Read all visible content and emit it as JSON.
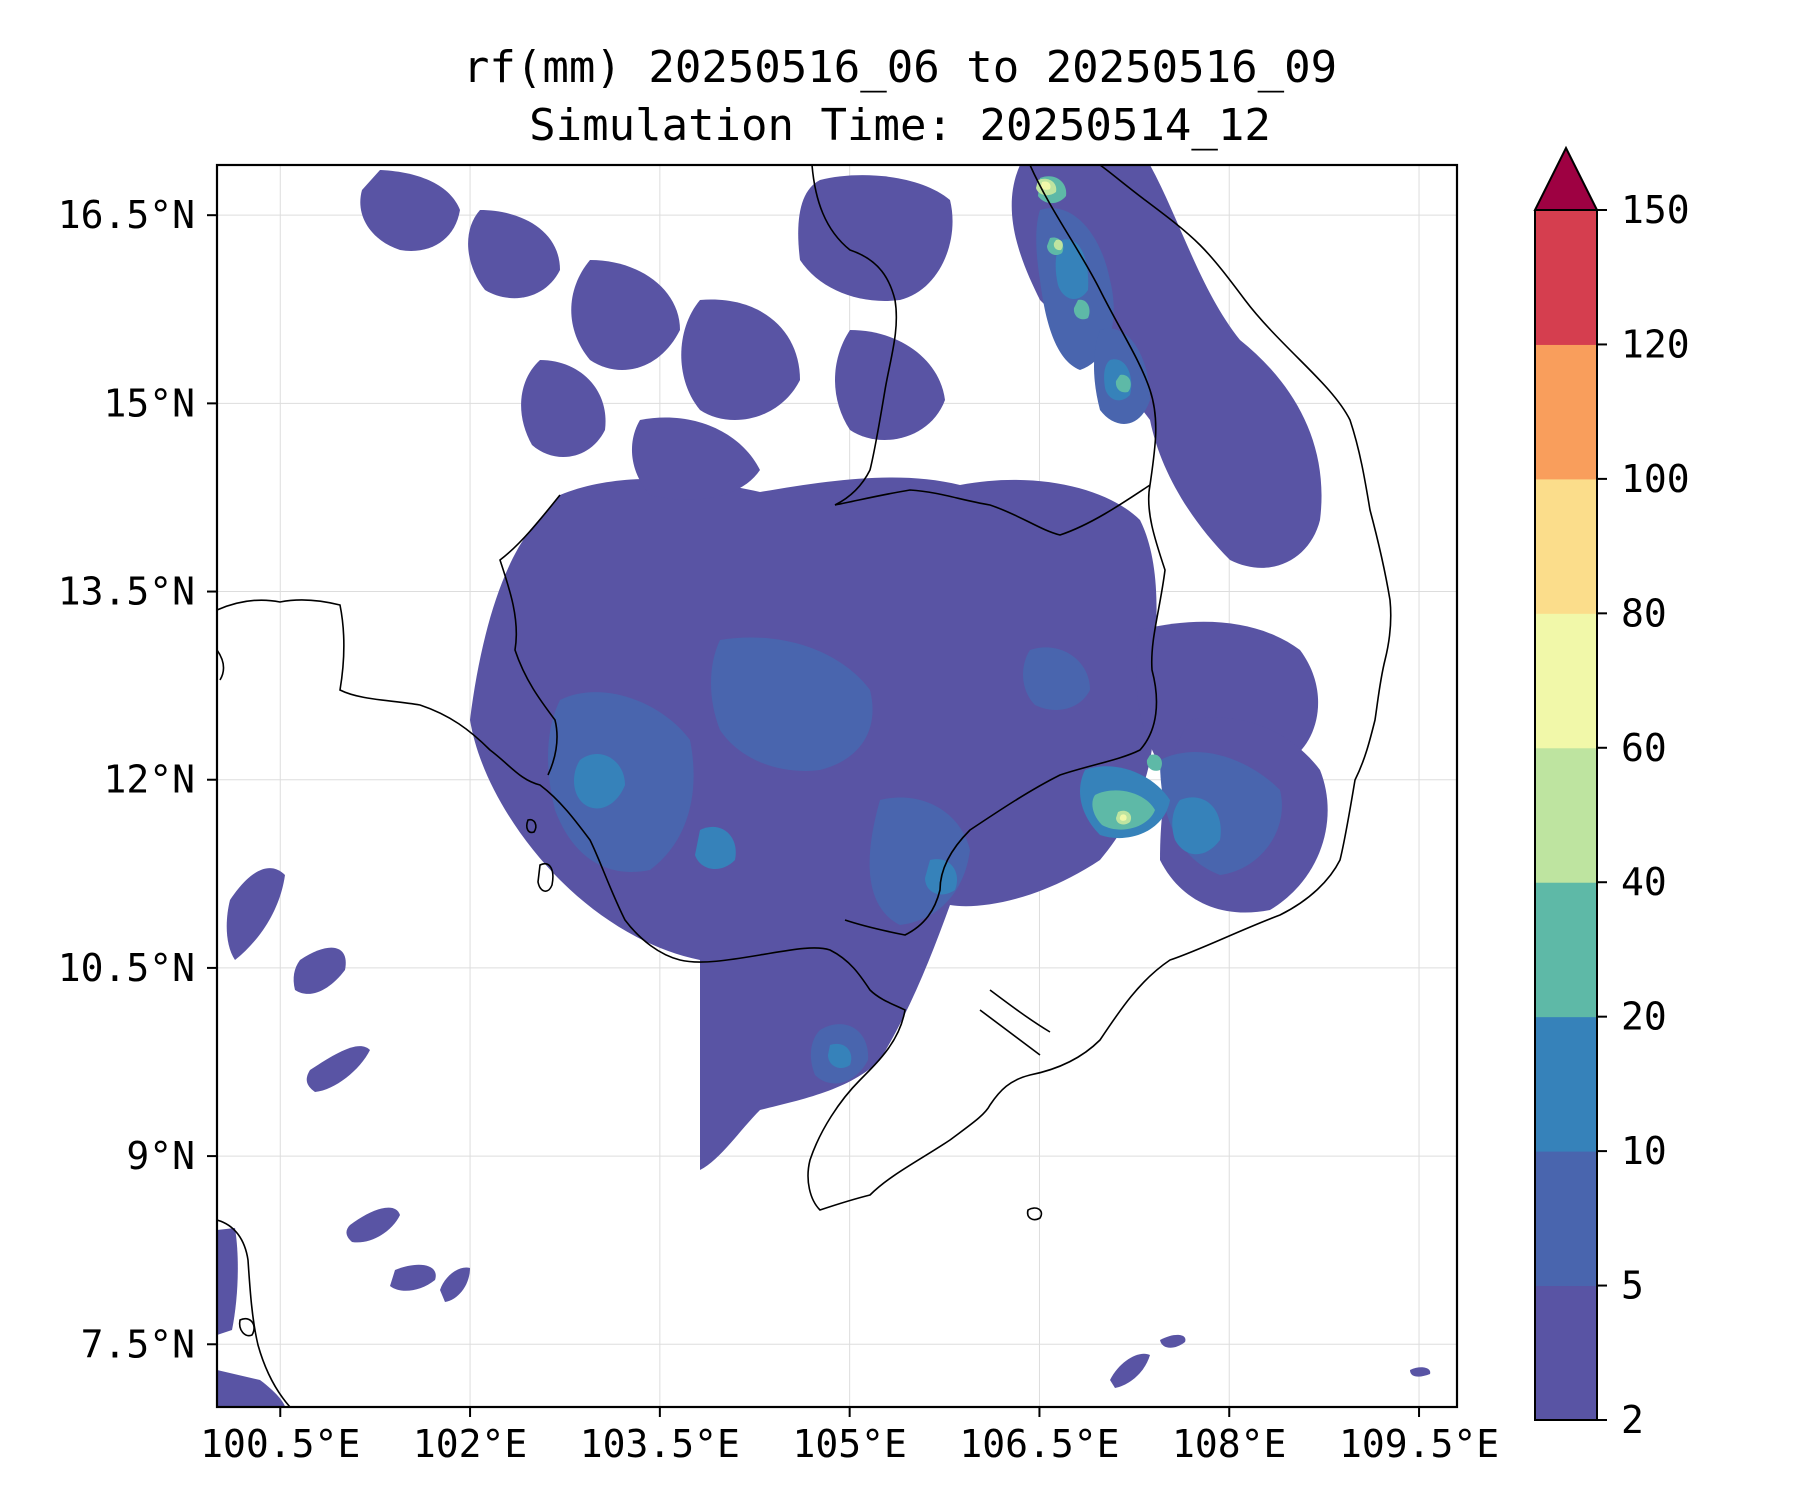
{
  "title": "rf(mm) 20250516_06 to 20250516_09",
  "subtitle": "Simulation Time: 20250514_12",
  "map": {
    "lon_range": [
      100.0,
      109.8
    ],
    "lat_range": [
      7.0,
      16.9
    ],
    "lon_ticks": [
      "100.5°E",
      "102°E",
      "103.5°E",
      "105°E",
      "106.5°E",
      "108°E",
      "109.5°E"
    ],
    "lat_ticks": [
      "16.5°N",
      "15°N",
      "13.5°N",
      "12°N",
      "10.5°N",
      "9°N",
      "7.5°N"
    ],
    "grid": true
  },
  "colorbar": {
    "levels": [
      "2",
      "5",
      "10",
      "20",
      "40",
      "60",
      "80",
      "100",
      "120",
      "150"
    ],
    "colors": [
      "#5954a4",
      "#4965ae",
      "#3682ba",
      "#5eb9a7",
      "#bee4a0",
      "#f1f8a9",
      "#fbdd8b",
      "#f99e5c",
      "#d53e4f",
      "#9e0142"
    ],
    "extend": "max"
  }
}
